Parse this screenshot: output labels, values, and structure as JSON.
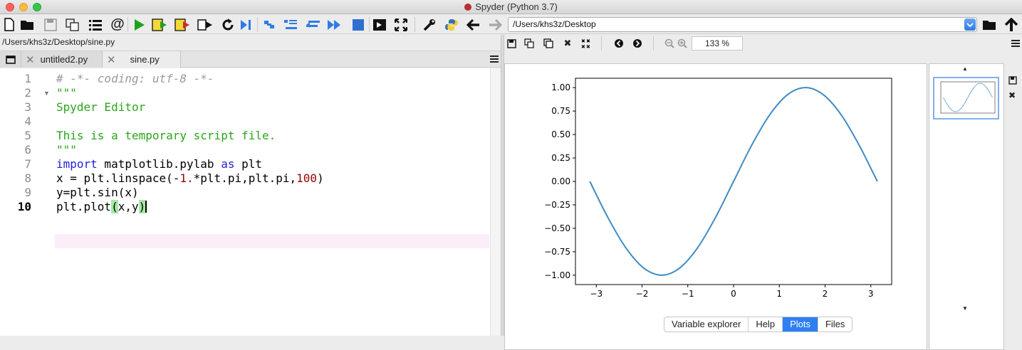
{
  "window": {
    "title": "Spyder (Python 3.7)"
  },
  "toolbar": {
    "icons": [
      "new-file-icon",
      "open-file-icon",
      "save-file-icon",
      "save-all-icon",
      "file-list-icon",
      "at-icon",
      "run-icon",
      "run-cell-icon",
      "run-cell-advance-icon",
      "run-selection-icon",
      "rerun-icon",
      "debug-icon",
      "continue-icon",
      "step-icon",
      "step-into-icon",
      "step-return-icon",
      "continue-debug-icon",
      "stop-debug-icon",
      "maximize-pane-icon",
      "fullscreen-icon",
      "preferences-icon",
      "python-path-icon",
      "back-icon",
      "forward-icon"
    ],
    "working_dir": "/Users/khs3z/Desktop"
  },
  "editor": {
    "file_path": "/Users/khs3z/Desktop/sine.py",
    "tabs": [
      {
        "label": "untitled2.py",
        "active": false
      },
      {
        "label": "sine.py",
        "active": true
      }
    ],
    "line_numbers": [
      "1",
      "2",
      "3",
      "4",
      "5",
      "6",
      "7",
      "8",
      "9",
      "10"
    ],
    "current_line": "10",
    "code": {
      "l1": "# -*- coding: utf-8 -*-",
      "l2": "\"\"\"",
      "l3": "Spyder Editor",
      "l5": "This is a temporary script file.",
      "l6": "\"\"\"",
      "l7_kw1": "import",
      "l7_mod": " matplotlib.pylab ",
      "l7_kw2": "as",
      "l7_alias": " plt",
      "l8_a": "x = plt.linspace(-",
      "l8_num1": "1.",
      "l8_b": "*plt.pi,plt.pi,",
      "l8_num2": "100",
      "l8_c": ")",
      "l9": "y=plt.sin(x)",
      "l10_a": "plt.plot",
      "l10_open": "(",
      "l10_args": "x,y",
      "l10_close": ")"
    }
  },
  "plots": {
    "zoom": "133 %",
    "bottom_tabs": [
      "Variable explorer",
      "Help",
      "Plots",
      "Files"
    ],
    "active_tab": "Plots"
  },
  "chart_data": {
    "type": "line",
    "title": "",
    "xlabel": "",
    "ylabel": "",
    "xlim": [
      -3.4557,
      3.4557
    ],
    "ylim": [
      -1.1,
      1.1
    ],
    "xticks": [
      -3,
      -2,
      -1,
      0,
      1,
      2,
      3
    ],
    "xtick_labels": [
      "−3",
      "−2",
      "−1",
      "0",
      "1",
      "2",
      "3"
    ],
    "yticks": [
      1.0,
      0.75,
      0.5,
      0.25,
      0.0,
      -0.25,
      -0.5,
      -0.75,
      -1.0
    ],
    "ytick_labels": [
      "1.00",
      "0.75",
      "0.50",
      "0.25",
      "0.00",
      "−0.25",
      "−0.50",
      "−0.75",
      "−1.00"
    ],
    "grid": false,
    "series": [
      {
        "color": "#3d8bc4",
        "x": [
          -3.14159,
          -2.74889,
          -2.35619,
          -1.9635,
          -1.5708,
          -1.1781,
          -0.7854,
          -0.3927,
          0.0,
          0.3927,
          0.7854,
          1.1781,
          1.5708,
          1.9635,
          2.35619,
          2.74889,
          3.14159
        ],
        "y": [
          0.0,
          -0.38268,
          -0.70711,
          -0.92388,
          -1.0,
          -0.92388,
          -0.70711,
          -0.38268,
          0.0,
          0.38268,
          0.70711,
          0.92388,
          1.0,
          0.92388,
          0.70711,
          0.38268,
          0.0
        ]
      }
    ]
  }
}
